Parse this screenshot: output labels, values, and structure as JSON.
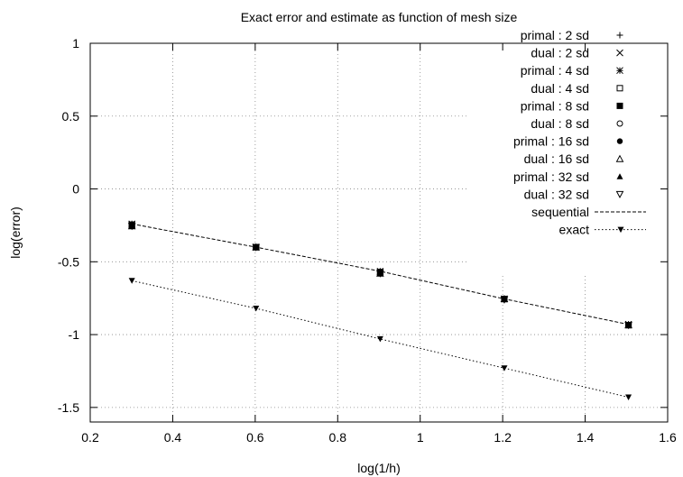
{
  "chart_data": {
    "type": "line",
    "title": "Exact error and estimate as function of mesh size",
    "xlabel": "log(1/h)",
    "ylabel": "log(error)",
    "xlim": [
      0.2,
      1.6
    ],
    "ylim": [
      -1.6,
      1
    ],
    "x_ticks": [
      0.2,
      0.4,
      0.6,
      0.8,
      1,
      1.2,
      1.4,
      1.6
    ],
    "x_tick_labels": [
      "0.2",
      "0.4",
      "0.6",
      "0.8",
      "1",
      "1.2",
      "1.4",
      "1.6"
    ],
    "y_ticks": [
      -1.5,
      -1,
      -0.5,
      0,
      0.5,
      1
    ],
    "y_tick_labels": [
      "-1.5",
      "-1",
      "-0.5",
      "0",
      "0.5",
      "1"
    ],
    "grid": true,
    "legend_position": "top-right",
    "x": [
      0.301,
      0.602,
      0.903,
      1.204,
      1.505
    ],
    "series": [
      {
        "name": "primal : 2 sd",
        "marker": "plus",
        "style": "points",
        "values": [
          -0.24,
          -0.4,
          -0.565,
          -0.755,
          -0.93
        ]
      },
      {
        "name": "dual : 2 sd",
        "marker": "cross",
        "style": "points",
        "values": [
          -0.24,
          -0.4,
          -0.565,
          -0.755,
          -0.93
        ]
      },
      {
        "name": "primal : 4 sd",
        "marker": "star",
        "style": "points",
        "values": [
          -0.245,
          -0.4,
          -0.57,
          -0.755,
          -0.93
        ]
      },
      {
        "name": "dual : 4 sd",
        "marker": "open-square",
        "style": "points",
        "values": [
          -0.245,
          -0.4,
          -0.57,
          -0.755,
          -0.935
        ]
      },
      {
        "name": "primal : 8 sd",
        "marker": "filled-square",
        "style": "points",
        "values": [
          -0.25,
          -0.4,
          -0.575,
          -0.755,
          -0.935
        ]
      },
      {
        "name": "dual : 8 sd",
        "marker": "open-circle",
        "style": "points",
        "values": [
          -0.25,
          -0.4,
          -0.575,
          -0.755,
          -0.935
        ]
      },
      {
        "name": "primal : 16 sd",
        "marker": "filled-circle",
        "style": "points",
        "values": [
          -0.255,
          -0.4,
          -0.58,
          -0.755,
          -0.935
        ]
      },
      {
        "name": "dual : 16 sd",
        "marker": "open-triangle",
        "style": "points",
        "values": [
          -0.255,
          -0.4,
          -0.58,
          -0.755,
          -0.935
        ]
      },
      {
        "name": "primal : 32 sd",
        "marker": "filled-triangle",
        "style": "points",
        "values": [
          -0.255,
          -0.4,
          -0.58,
          -0.76,
          -0.935
        ]
      },
      {
        "name": "dual : 32 sd",
        "marker": "open-inverted-triangle",
        "style": "points",
        "values": [
          -0.255,
          -0.4,
          -0.58,
          -0.76,
          -0.935
        ]
      },
      {
        "name": "sequential",
        "marker": "none",
        "style": "dashed-line",
        "values": [
          -0.24,
          -0.4,
          -0.565,
          -0.755,
          -0.93
        ]
      },
      {
        "name": "exact",
        "marker": "filled-inverted-triangle",
        "style": "dotted-line-points",
        "values": [
          -0.63,
          -0.82,
          -1.03,
          -1.23,
          -1.43
        ]
      }
    ]
  }
}
